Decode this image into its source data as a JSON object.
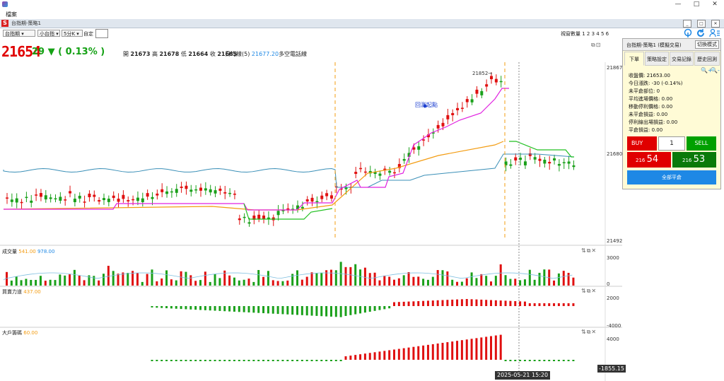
{
  "menu": {
    "file": "檔案"
  },
  "subbar": {
    "text": "台指期-策略1"
  },
  "toolbar": {
    "symbol": "台指期",
    "contract": "小台指",
    "interval": "5分K",
    "custom_label": "自定",
    "window_count_label": "視窗數量 1 2 3 4 5 6"
  },
  "quote": {
    "last": "21654",
    "change": "29",
    "change_pct": "( 0.13% )",
    "open_label": "開",
    "open": "21673",
    "high_label": "高",
    "high": "21678",
    "low_label": "低",
    "low": "21664",
    "close_label": "收",
    "close": "21665",
    "ma_label": "日均線(5)",
    "ma_value": "21677.20",
    "ma_suffix": "多空電話線"
  },
  "main_chart": {
    "y_ticks": [
      "21867",
      "21680",
      "21492"
    ],
    "annotation_peak": "21852→",
    "annotation_signal": "回測起點"
  },
  "volume_pane": {
    "title": "成交量",
    "v1": "541.00",
    "v2": "978.00",
    "y_ticks": [
      "3000",
      "0"
    ],
    "colors": {
      "up": "#e01010",
      "down": "#1aa01a"
    }
  },
  "power_pane": {
    "title": "買賣力道",
    "v1": "437.00",
    "y_ticks": [
      "2000",
      "-4000"
    ]
  },
  "big_pane": {
    "title": "大戶籌碼",
    "v1": "60.00",
    "y_ticks": [
      "4000"
    ]
  },
  "footer": {
    "datetime": "2025-05-21   15:20",
    "readout": "-1855.15"
  },
  "panel": {
    "title": "台指期-策略1 (模擬交易)",
    "mode_button": "切換模式",
    "tabs": [
      "下單",
      "策略設定",
      "交易記錄",
      "歷史回測"
    ],
    "lines": [
      "收盤價: 21653.00",
      "今日漲跌: -30 (-0.14%)",
      "未平倉部位: 0",
      "平均進場價格: 0.00",
      "移動停利價格: 0.00",
      "未平倉損益: 0.00",
      "停利線出場損益: 0.00",
      "平倉損益: 0.00"
    ],
    "buy": "BUY",
    "sell": "SELL",
    "qty": "1",
    "bid_prefix": "216",
    "bid": "54",
    "ask_prefix": "216",
    "ask": "53",
    "flatten_all": "全部平倉"
  }
}
